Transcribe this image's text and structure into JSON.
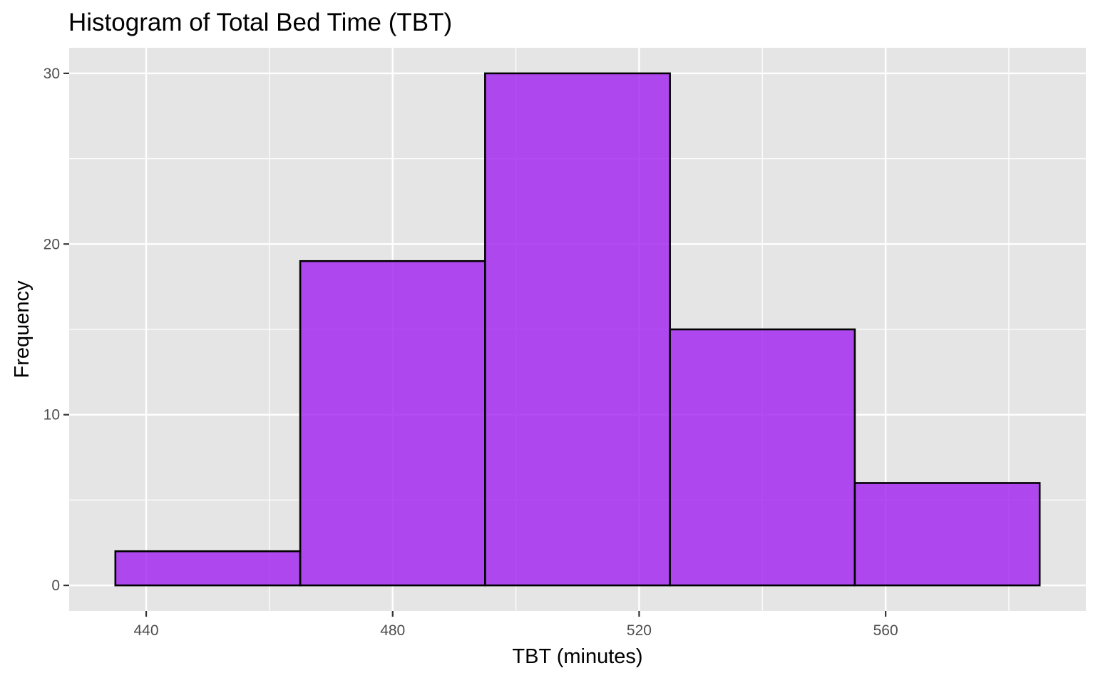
{
  "chart_data": {
    "type": "bar",
    "title": "Histogram of Total Bed Time (TBT)",
    "xlabel": "TBT (minutes)",
    "ylabel": "Frequency",
    "bins": [
      {
        "x0": 435,
        "x1": 465,
        "count": 2
      },
      {
        "x0": 465,
        "x1": 495,
        "count": 19
      },
      {
        "x0": 495,
        "x1": 525,
        "count": 30
      },
      {
        "x0": 525,
        "x1": 555,
        "count": 15
      },
      {
        "x0": 555,
        "x1": 585,
        "count": 6
      }
    ],
    "xlim": [
      427.5,
      592.5
    ],
    "ylim": [
      -1.5,
      31.5
    ],
    "x_ticks": [
      440,
      480,
      520,
      560
    ],
    "x_tick_labels": [
      "440",
      "480",
      "520",
      "560"
    ],
    "y_ticks": [
      0,
      10,
      20,
      30
    ],
    "y_tick_labels": [
      "0",
      "10",
      "20",
      "30"
    ],
    "grid": true,
    "bar_fill": "#A020F0",
    "bar_outline": "#000000",
    "panel_background": "#E5E5E5",
    "grid_color": "#FFFFFF"
  }
}
